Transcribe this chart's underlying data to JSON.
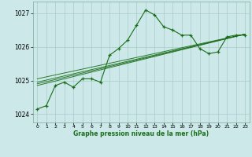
{
  "background_color": "#cce8e8",
  "plot_bg_color": "#cce8e8",
  "grid_color": "#aacccc",
  "line_color": "#1a6e1a",
  "marker_color": "#1a6e1a",
  "xlabel": "Graphe pression niveau de la mer (hPa)",
  "xlim": [
    -0.5,
    23.5
  ],
  "ylim": [
    1023.75,
    1027.35
  ],
  "yticks": [
    1024,
    1025,
    1026,
    1027
  ],
  "xticks": [
    0,
    1,
    2,
    3,
    4,
    5,
    6,
    7,
    8,
    9,
    10,
    11,
    12,
    13,
    14,
    15,
    16,
    17,
    18,
    19,
    20,
    21,
    22,
    23
  ],
  "main_line": [
    [
      0,
      1024.15
    ],
    [
      1,
      1024.25
    ],
    [
      2,
      1024.85
    ],
    [
      3,
      1024.95
    ],
    [
      4,
      1024.8
    ],
    [
      5,
      1025.05
    ],
    [
      6,
      1025.05
    ],
    [
      7,
      1024.95
    ],
    [
      8,
      1025.75
    ],
    [
      9,
      1025.95
    ],
    [
      10,
      1026.2
    ],
    [
      11,
      1026.65
    ],
    [
      12,
      1027.1
    ],
    [
      13,
      1026.95
    ],
    [
      14,
      1026.6
    ],
    [
      15,
      1026.5
    ],
    [
      16,
      1026.35
    ],
    [
      17,
      1026.35
    ],
    [
      18,
      1025.95
    ],
    [
      19,
      1025.8
    ],
    [
      20,
      1025.85
    ],
    [
      21,
      1026.3
    ],
    [
      22,
      1026.35
    ],
    [
      23,
      1026.35
    ]
  ],
  "trend_lines": [
    [
      [
        0,
        1024.85
      ],
      [
        23,
        1026.38
      ]
    ],
    [
      [
        0,
        1024.9
      ],
      [
        23,
        1026.38
      ]
    ],
    [
      [
        0,
        1024.95
      ],
      [
        23,
        1026.38
      ]
    ],
    [
      [
        0,
        1025.05
      ],
      [
        23,
        1026.38
      ]
    ]
  ],
  "figsize": [
    3.2,
    2.0
  ],
  "dpi": 100
}
